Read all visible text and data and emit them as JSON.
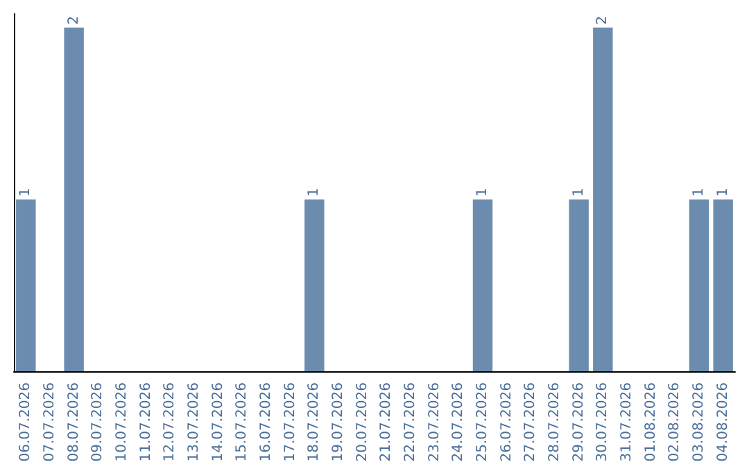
{
  "chart_data": {
    "type": "bar",
    "categories": [
      "06.07.2026",
      "07.07.2026",
      "08.07.2026",
      "09.07.2026",
      "10.07.2026",
      "11.07.2026",
      "12.07.2026",
      "13.07.2026",
      "14.07.2026",
      "15.07.2026",
      "16.07.2026",
      "17.07.2026",
      "18.07.2026",
      "19.07.2026",
      "20.07.2026",
      "21.07.2026",
      "22.07.2026",
      "23.07.2026",
      "24.07.2026",
      "25.07.2026",
      "26.07.2026",
      "27.07.2026",
      "28.07.2026",
      "29.07.2026",
      "30.07.2026",
      "31.07.2026",
      "01.08.2026",
      "02.08.2026",
      "03.08.2026",
      "04.08.2026"
    ],
    "values": [
      1,
      0,
      2,
      0,
      0,
      0,
      0,
      0,
      0,
      0,
      0,
      0,
      1,
      0,
      0,
      0,
      0,
      0,
      0,
      1,
      0,
      0,
      0,
      1,
      2,
      0,
      0,
      0,
      1,
      1
    ],
    "value_labels": [
      "1",
      null,
      "2",
      null,
      null,
      null,
      null,
      null,
      null,
      null,
      null,
      null,
      "1",
      null,
      null,
      null,
      null,
      null,
      null,
      "1",
      null,
      null,
      null,
      "1",
      "2",
      null,
      null,
      null,
      "1",
      "1"
    ],
    "color": "#6b8cae",
    "ylim": [
      0,
      2.08
    ],
    "tick_labels": "x",
    "grid": false
  }
}
